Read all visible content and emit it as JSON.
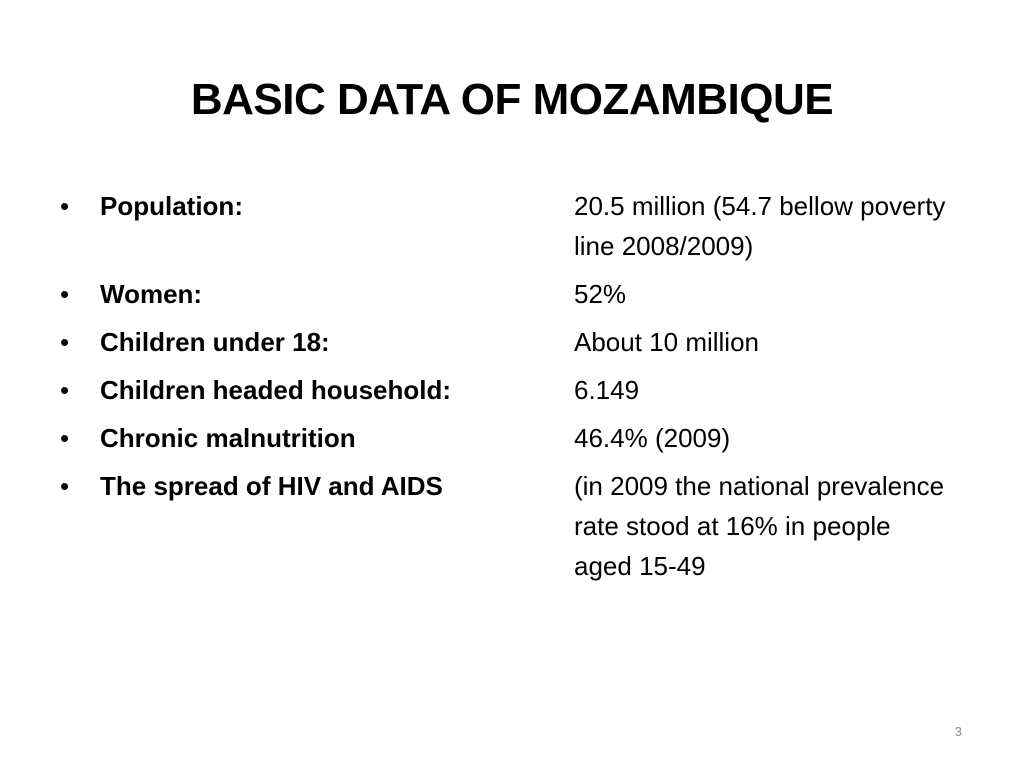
{
  "slide": {
    "title": "BASIC DATA OF MOZAMBIQUE",
    "bullet_symbol": "•",
    "items": [
      {
        "label": "Population:",
        "value": "20.5 million (54.7 bellow poverty line 2008/2009)"
      },
      {
        "label": "Women:",
        "value": "52%"
      },
      {
        "label": "Children under 18:",
        "value": "About 10 million"
      },
      {
        "label": "Children headed household:",
        "value": "6.149"
      },
      {
        "label": "Chronic malnutrition",
        "value": "46.4% (2009)"
      },
      {
        "label": "The spread of HIV and AIDS",
        "value": "(in 2009 the national prevalence rate stood at 16% in people aged 15-49"
      }
    ],
    "page_number": "3"
  }
}
